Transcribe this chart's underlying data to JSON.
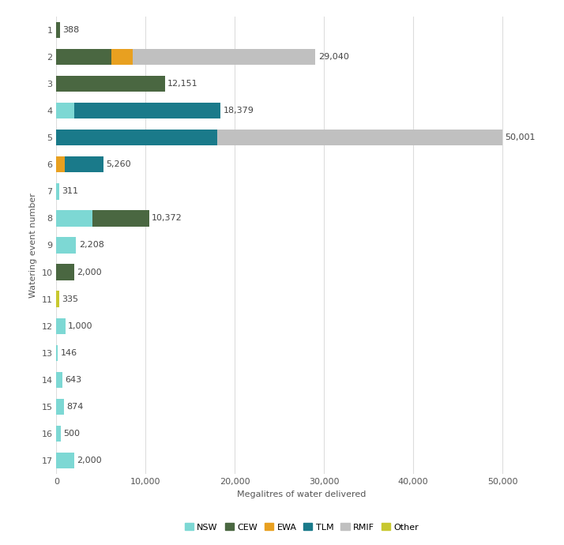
{
  "categories": [
    1,
    2,
    3,
    4,
    5,
    6,
    7,
    8,
    9,
    10,
    11,
    12,
    13,
    14,
    15,
    16,
    17
  ],
  "segments": {
    "NSW": [
      0,
      0,
      0,
      2000,
      0,
      0,
      311,
      4000,
      2208,
      0,
      0,
      1000,
      146,
      643,
      874,
      500,
      2000
    ],
    "CEW": [
      388,
      6200,
      12151,
      0,
      0,
      0,
      0,
      6372,
      0,
      2000,
      0,
      0,
      0,
      0,
      0,
      0,
      0
    ],
    "EWA": [
      0,
      2340,
      0,
      0,
      0,
      900,
      0,
      0,
      0,
      0,
      0,
      0,
      0,
      0,
      0,
      0,
      0
    ],
    "TLM": [
      0,
      0,
      0,
      16379,
      18000,
      4360,
      0,
      0,
      0,
      0,
      0,
      0,
      0,
      0,
      0,
      0,
      0
    ],
    "RMIF": [
      0,
      20500,
      0,
      0,
      32001,
      0,
      0,
      0,
      0,
      0,
      0,
      0,
      0,
      0,
      0,
      0,
      0
    ],
    "Other": [
      0,
      0,
      0,
      0,
      0,
      0,
      0,
      0,
      0,
      0,
      335,
      0,
      0,
      0,
      0,
      0,
      0
    ]
  },
  "totals": [
    388,
    29040,
    12151,
    18379,
    50001,
    5260,
    311,
    10372,
    2208,
    2000,
    335,
    1000,
    146,
    643,
    874,
    500,
    2000
  ],
  "colors": {
    "NSW": "#7dd8d4",
    "CEW": "#4a6741",
    "EWA": "#e8a020",
    "TLM": "#1a7a8a",
    "RMIF": "#c0c0c0",
    "Other": "#c8c830"
  },
  "legend_labels": [
    "NSW",
    "CEW",
    "EWA",
    "TLM",
    "RMIF",
    "Other"
  ],
  "xlabel": "Megalitres of water delivered",
  "ylabel": "Watering event number",
  "xlim": [
    0,
    55000
  ],
  "xticks": [
    0,
    10000,
    20000,
    30000,
    40000,
    50000
  ],
  "xticklabels": [
    "0",
    "10,000",
    "20,000",
    "30,000",
    "40,000",
    "50,000"
  ],
  "background_color": "#ffffff",
  "grid_color": "#dddddd",
  "bar_height": 0.6,
  "label_fontsize": 8,
  "axis_fontsize": 8,
  "legend_fontsize": 8
}
